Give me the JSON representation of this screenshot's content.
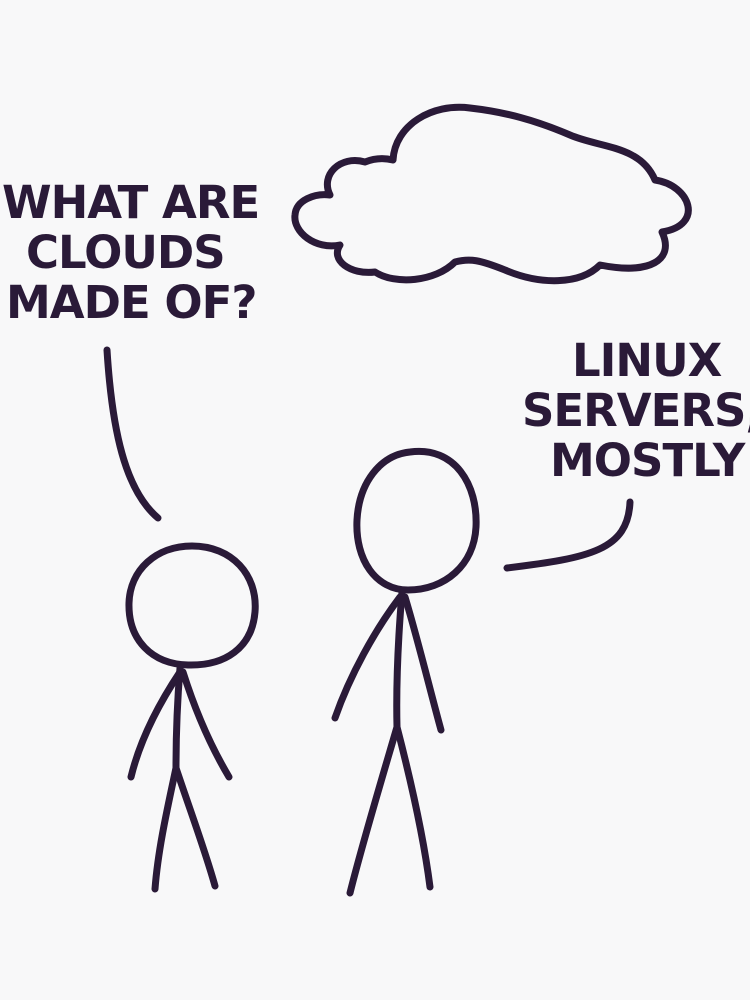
{
  "colors": {
    "background": "#f8f8f9",
    "ink": "#2a1a38"
  },
  "speech_left": {
    "lines": [
      "WHAT ARE",
      "CLOUDS",
      "MADE OF?"
    ]
  },
  "speech_right": {
    "lines": [
      "LINUX",
      "SERVERS,",
      "MOSTLY"
    ]
  },
  "icons": {
    "cloud": "cloud-icon",
    "short_figure": "stick-figure-short",
    "tall_figure": "stick-figure-tall"
  }
}
